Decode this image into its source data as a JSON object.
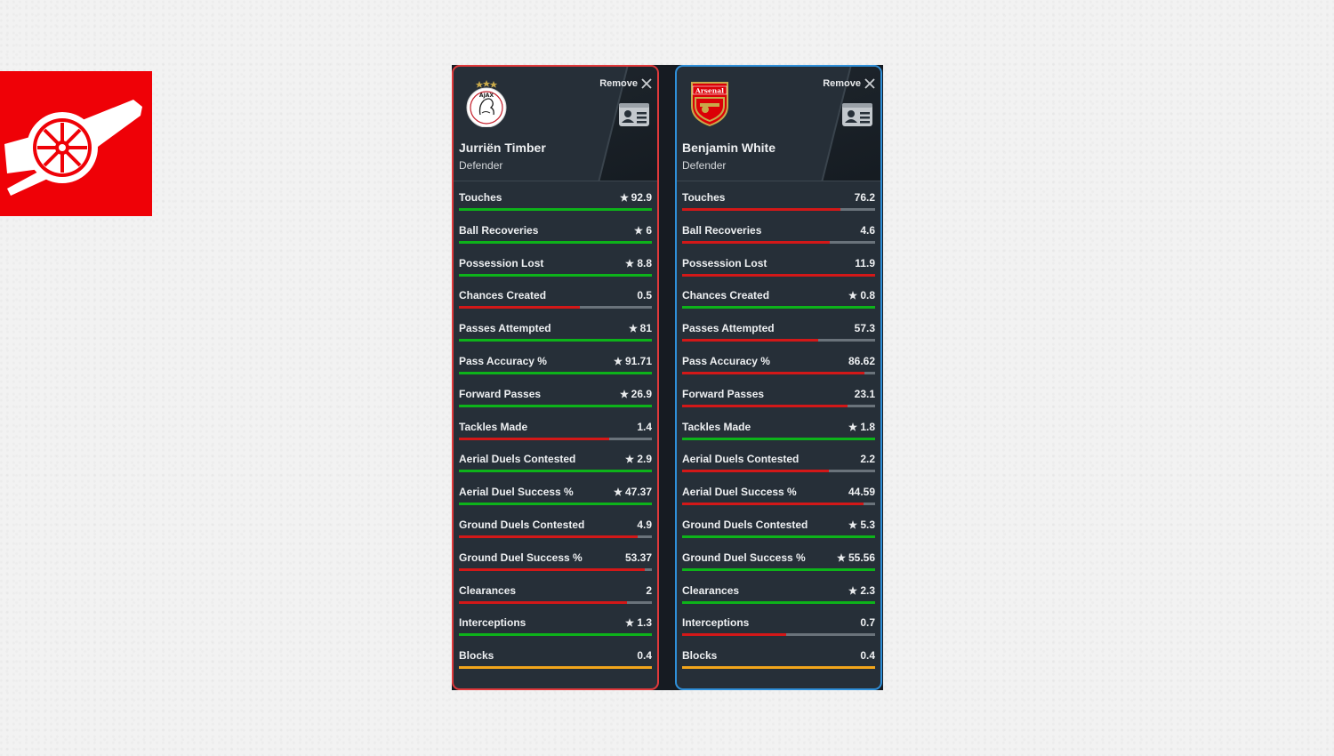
{
  "colors": {
    "green": "#0db31a",
    "red": "#d31818",
    "yellow": "#f2a51b"
  },
  "players": [
    {
      "name": "Jurriën Timber",
      "position": "Defender",
      "badge": "ajax",
      "badge_text": "AJAX",
      "remove_label": "Remove",
      "stats": [
        {
          "label": "Touches",
          "value": "92.9",
          "star": true,
          "color": "green",
          "fill": 1.0
        },
        {
          "label": "Ball Recoveries",
          "value": "6",
          "star": true,
          "color": "green",
          "fill": 1.0
        },
        {
          "label": "Possession Lost",
          "value": "8.8",
          "star": true,
          "color": "green",
          "fill": 1.0
        },
        {
          "label": "Chances Created",
          "value": "0.5",
          "star": false,
          "color": "red",
          "fill": 0.625
        },
        {
          "label": "Passes Attempted",
          "value": "81",
          "star": true,
          "color": "green",
          "fill": 1.0
        },
        {
          "label": "Pass Accuracy %",
          "value": "91.71",
          "star": true,
          "color": "green",
          "fill": 1.0
        },
        {
          "label": "Forward Passes",
          "value": "26.9",
          "star": true,
          "color": "green",
          "fill": 1.0
        },
        {
          "label": "Tackles Made",
          "value": "1.4",
          "star": false,
          "color": "red",
          "fill": 0.778
        },
        {
          "label": "Aerial Duels Contested",
          "value": "2.9",
          "star": true,
          "color": "green",
          "fill": 1.0
        },
        {
          "label": "Aerial Duel Success %",
          "value": "47.37",
          "star": true,
          "color": "green",
          "fill": 1.0
        },
        {
          "label": "Ground Duels Contested",
          "value": "4.9",
          "star": false,
          "color": "red",
          "fill": 0.925
        },
        {
          "label": "Ground Duel Success %",
          "value": "53.37",
          "star": false,
          "color": "red",
          "fill": 0.961
        },
        {
          "label": "Clearances",
          "value": "2",
          "star": false,
          "color": "red",
          "fill": 0.87
        },
        {
          "label": "Interceptions",
          "value": "1.3",
          "star": true,
          "color": "green",
          "fill": 1.0
        },
        {
          "label": "Blocks",
          "value": "0.4",
          "star": false,
          "color": "yellow",
          "fill": 1.0
        }
      ]
    },
    {
      "name": "Benjamin White",
      "position": "Defender",
      "badge": "arsenal",
      "badge_text": "Arsenal",
      "remove_label": "Remove",
      "stats": [
        {
          "label": "Touches",
          "value": "76.2",
          "star": false,
          "color": "red",
          "fill": 0.82
        },
        {
          "label": "Ball Recoveries",
          "value": "4.6",
          "star": false,
          "color": "red",
          "fill": 0.767
        },
        {
          "label": "Possession Lost",
          "value": "11.9",
          "star": false,
          "color": "red",
          "fill": 1.0
        },
        {
          "label": "Chances Created",
          "value": "0.8",
          "star": true,
          "color": "green",
          "fill": 1.0
        },
        {
          "label": "Passes Attempted",
          "value": "57.3",
          "star": false,
          "color": "red",
          "fill": 0.707
        },
        {
          "label": "Pass Accuracy %",
          "value": "86.62",
          "star": false,
          "color": "red",
          "fill": 0.944
        },
        {
          "label": "Forward Passes",
          "value": "23.1",
          "star": false,
          "color": "red",
          "fill": 0.859
        },
        {
          "label": "Tackles Made",
          "value": "1.8",
          "star": true,
          "color": "green",
          "fill": 1.0
        },
        {
          "label": "Aerial Duels Contested",
          "value": "2.2",
          "star": false,
          "color": "red",
          "fill": 0.759
        },
        {
          "label": "Aerial Duel Success %",
          "value": "44.59",
          "star": false,
          "color": "red",
          "fill": 0.941
        },
        {
          "label": "Ground Duels Contested",
          "value": "5.3",
          "star": true,
          "color": "green",
          "fill": 1.0
        },
        {
          "label": "Ground Duel Success %",
          "value": "55.56",
          "star": true,
          "color": "green",
          "fill": 1.0
        },
        {
          "label": "Clearances",
          "value": "2.3",
          "star": true,
          "color": "green",
          "fill": 1.0
        },
        {
          "label": "Interceptions",
          "value": "0.7",
          "star": false,
          "color": "red",
          "fill": 0.538
        },
        {
          "label": "Blocks",
          "value": "0.4",
          "star": false,
          "color": "yellow",
          "fill": 1.0
        }
      ]
    }
  ]
}
